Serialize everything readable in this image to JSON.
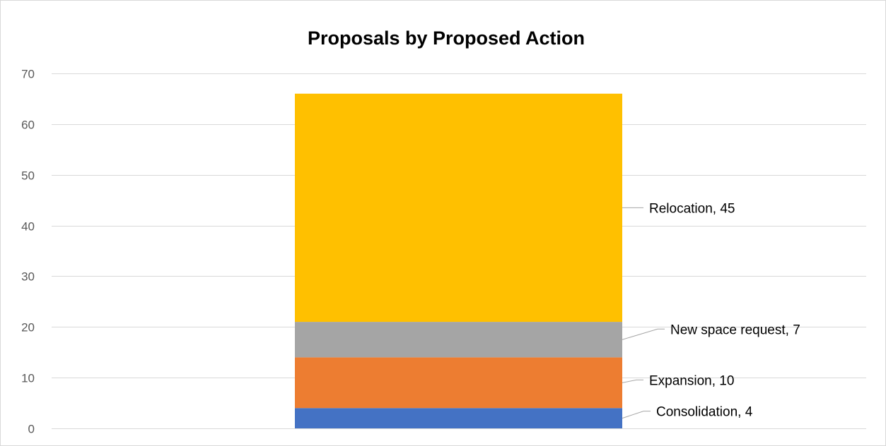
{
  "chart_data": {
    "type": "bar",
    "stacked": true,
    "title": "Proposals by Proposed Action",
    "xlabel": "",
    "ylabel": "",
    "ylim": [
      0,
      70
    ],
    "yticks": [
      0,
      10,
      20,
      30,
      40,
      50,
      60,
      70
    ],
    "grid": true,
    "legend": "none",
    "categories": [
      ""
    ],
    "series": [
      {
        "name": "Consolidation",
        "values": [
          4
        ],
        "color": "#4472c4",
        "label": "Consolidation, 4"
      },
      {
        "name": "Expansion",
        "values": [
          10
        ],
        "color": "#ed7d31",
        "label": "Expansion, 10"
      },
      {
        "name": "New space request",
        "values": [
          7
        ],
        "color": "#a5a5a5",
        "label": "New space request, 7"
      },
      {
        "name": "Relocation",
        "values": [
          45
        ],
        "color": "#ffc000",
        "label": "Relocation, 45"
      }
    ]
  }
}
